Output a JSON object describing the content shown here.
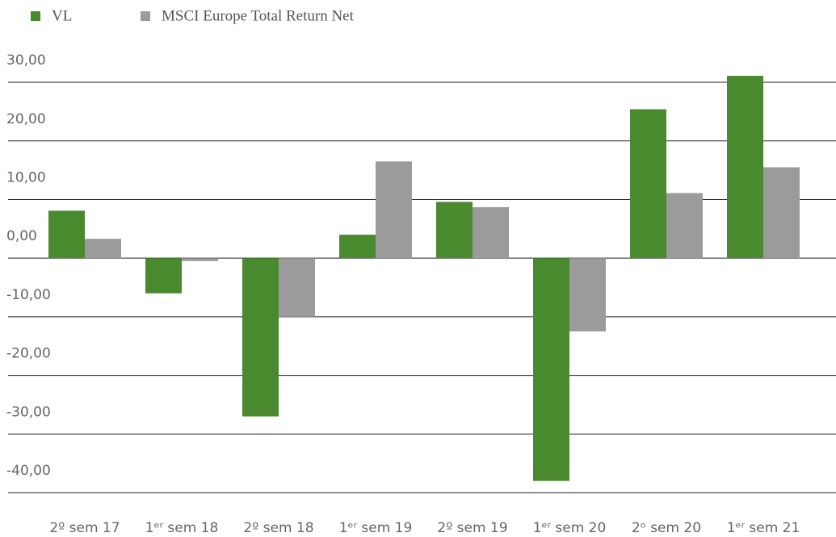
{
  "chart_data": {
    "type": "bar",
    "categories": [
      "2º sem 17",
      "1ᵉʳ sem 18",
      "2º sem 18",
      "1ᵉʳ sem 19",
      "2º sem 19",
      "1ᵉʳ sem 20",
      "2ᵒ sem 20",
      "1ᵉʳ sem 21"
    ],
    "series": [
      {
        "name": "VL",
        "color": "#4a8a2f",
        "values": [
          8.1,
          -6.0,
          -27.0,
          4.0,
          9.6,
          -38.0,
          25.4,
          31.1
        ]
      },
      {
        "name": "MSCI Europe Total Return Net",
        "color": "#9b9b9b",
        "values": [
          3.3,
          -0.5,
          -10.0,
          16.5,
          8.7,
          -12.5,
          11.1,
          15.5
        ]
      }
    ],
    "ylim": [
      -40,
      32
    ],
    "yticks": [
      {
        "value": 30,
        "label": "30,00"
      },
      {
        "value": 20,
        "label": "20,00"
      },
      {
        "value": 10,
        "label": "10,00"
      },
      {
        "value": 0,
        "label": "0,00"
      },
      {
        "value": -10,
        "label": "-10,00"
      },
      {
        "value": -20,
        "label": "-20,00"
      },
      {
        "value": -30,
        "label": "-30,00"
      },
      {
        "value": -40,
        "label": "-40,00"
      }
    ],
    "grid": true
  }
}
